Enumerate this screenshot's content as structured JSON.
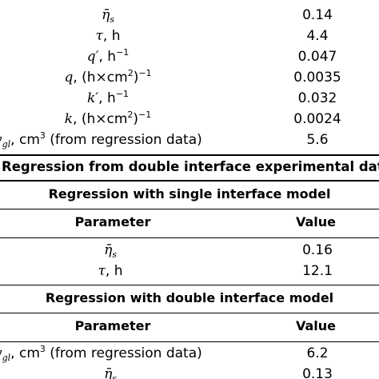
{
  "table": {
    "top_rows": [
      {
        "sym": "η̄",
        "sub": "s",
        "unit": "",
        "unit_sup": "",
        "value": "0.14"
      },
      {
        "sym": "τ",
        "unit": ", h",
        "unit_sup": "",
        "value": "4.4"
      },
      {
        "sym": "q′",
        "unit": ", h",
        "unit_sup": "−1",
        "value": "0.047"
      },
      {
        "sym": "q",
        "unit": ", (h×cm",
        "unit_sup": "2",
        "unit_tail": ")",
        "tail_sup": "−1",
        "value": "0.0035"
      },
      {
        "sym": "k′",
        "unit": ", h",
        "unit_sup": "−1",
        "value": "0.032"
      },
      {
        "sym": "k",
        "unit": ", (h×cm",
        "unit_sup": "2",
        "unit_tail": ")",
        "tail_sup": "−1",
        "value": "0.0024"
      },
      {
        "sym": "v",
        "sub": "gl",
        "unit": ", cm",
        "unit_sup": "3",
        "unit_tail": " (from regression data)",
        "value": "5.6"
      }
    ],
    "section_header": "Regression from double interface experimental data",
    "single": {
      "title": "Regression with single interface model",
      "col_param": "Parameter",
      "col_value": "Value",
      "rows": [
        {
          "sym": "η̄",
          "sub": "s",
          "value": "0.16"
        },
        {
          "sym": "τ",
          "unit": ", h",
          "value": "12.1"
        }
      ]
    },
    "double": {
      "title": "Regression with double interface model",
      "col_param": "Parameter",
      "col_value": "Value",
      "rows": [
        {
          "sym": "v",
          "sub": "gl",
          "unit": ", cm",
          "unit_sup": "3",
          "unit_tail": " (from regression data)",
          "value": "6.2"
        },
        {
          "sym": "η̄",
          "sub": "s",
          "value": "0.13"
        }
      ]
    }
  }
}
